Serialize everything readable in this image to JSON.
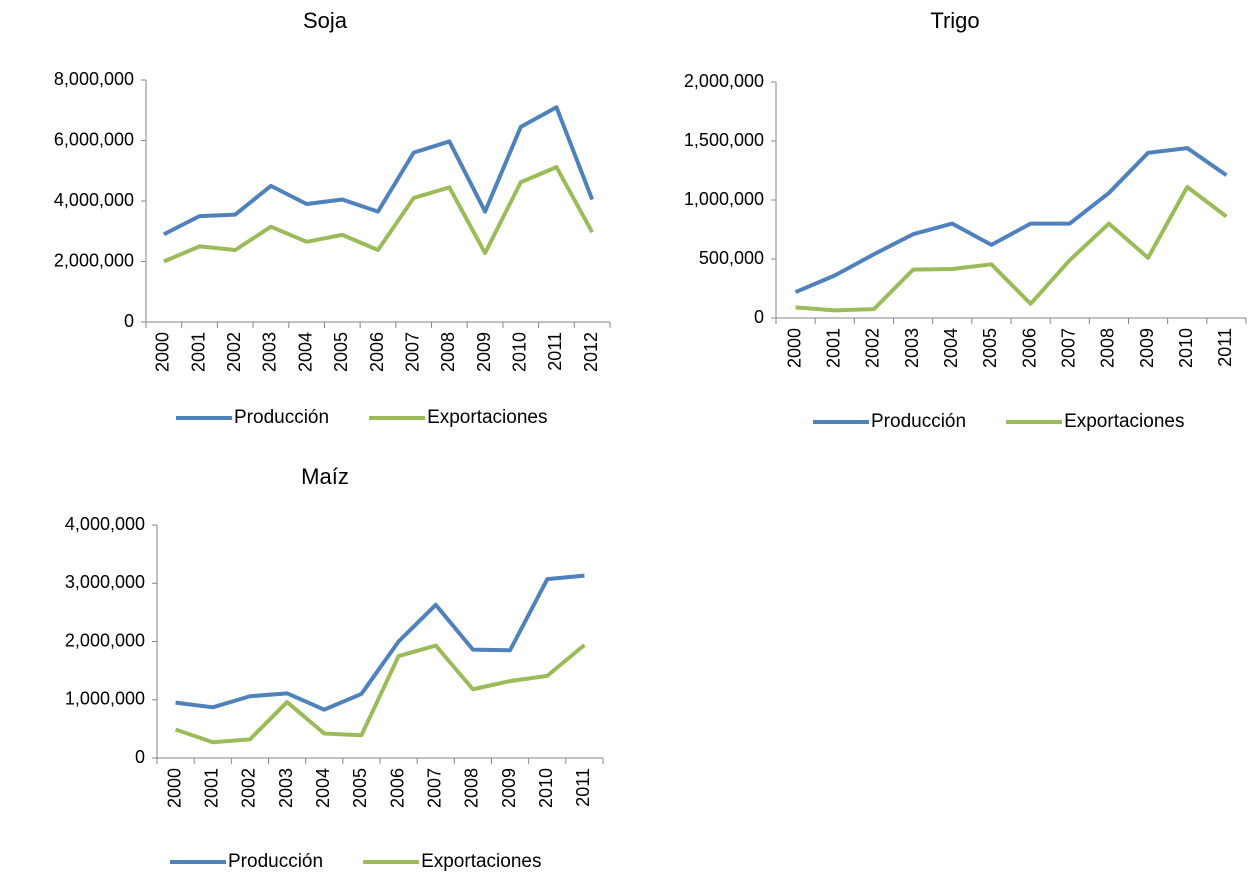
{
  "chart_data": [
    {
      "type": "line",
      "title": "Soja",
      "categories": [
        "2000",
        "2001",
        "2002",
        "2003",
        "2004",
        "2005",
        "2006",
        "2007",
        "2008",
        "2009",
        "2010",
        "2011",
        "2012"
      ],
      "series": [
        {
          "name": "Producción",
          "color": "#4f81bd",
          "values": [
            2900000,
            3500000,
            3550000,
            4500000,
            3900000,
            4050000,
            3650000,
            5600000,
            5970000,
            3650000,
            6450000,
            7100000,
            4050000
          ]
        },
        {
          "name": "Exportaciones",
          "color": "#9bbb59",
          "values": [
            2000000,
            2500000,
            2380000,
            3150000,
            2650000,
            2880000,
            2380000,
            4100000,
            4450000,
            2280000,
            4620000,
            5120000,
            2970000
          ]
        }
      ],
      "ylim": [
        0,
        8000000
      ],
      "yticks": [
        0,
        {
          "value": 2000000,
          "label": "2,000,000"
        },
        {
          "value": 4000000,
          "label": "4,000,000"
        },
        {
          "value": 6000000,
          "label": "6,000,000"
        },
        {
          "value": 8000000,
          "label": "8,000,000"
        }
      ],
      "legend": "bottom"
    },
    {
      "type": "line",
      "title": "Trigo",
      "categories": [
        "2000",
        "2001",
        "2002",
        "2003",
        "2004",
        "2005",
        "2006",
        "2007",
        "2008",
        "2009",
        "2010",
        "2011"
      ],
      "series": [
        {
          "name": "Producción",
          "color": "#4f81bd",
          "values": [
            220000,
            360000,
            540000,
            710000,
            800000,
            620000,
            800000,
            800000,
            1060000,
            1400000,
            1440000,
            1210000
          ]
        },
        {
          "name": "Exportaciones",
          "color": "#9bbb59",
          "values": [
            90000,
            65000,
            75000,
            410000,
            415000,
            455000,
            120000,
            490000,
            800000,
            510000,
            1110000,
            860000
          ]
        }
      ],
      "ylim": [
        0,
        2000000
      ],
      "yticks": [
        0,
        {
          "value": 500000,
          "label": "500,000"
        },
        {
          "value": 1000000,
          "label": "1,000,000"
        },
        {
          "value": 1500000,
          "label": "1,500,000"
        },
        {
          "value": 2000000,
          "label": "2,000,000"
        }
      ],
      "legend": "bottom"
    },
    {
      "type": "line",
      "title": "Maíz",
      "categories": [
        "2000",
        "2001",
        "2002",
        "2003",
        "2004",
        "2005",
        "2006",
        "2007",
        "2008",
        "2009",
        "2010",
        "2011"
      ],
      "series": [
        {
          "name": "Producción",
          "color": "#4f81bd",
          "values": [
            950000,
            870000,
            1060000,
            1110000,
            830000,
            1100000,
            2000000,
            2630000,
            1860000,
            1850000,
            3070000,
            3130000
          ]
        },
        {
          "name": "Exportaciones",
          "color": "#9bbb59",
          "values": [
            490000,
            270000,
            320000,
            960000,
            420000,
            390000,
            1750000,
            1930000,
            1180000,
            1320000,
            1410000,
            1940000
          ]
        }
      ],
      "ylim": [
        0,
        4000000
      ],
      "yticks": [
        0,
        {
          "value": 1000000,
          "label": "1,000,000"
        },
        {
          "value": 2000000,
          "label": "2,000,000"
        },
        {
          "value": 3000000,
          "label": "3,000,000"
        },
        {
          "value": 4000000,
          "label": "4,000,000"
        }
      ],
      "legend": "bottom"
    }
  ]
}
